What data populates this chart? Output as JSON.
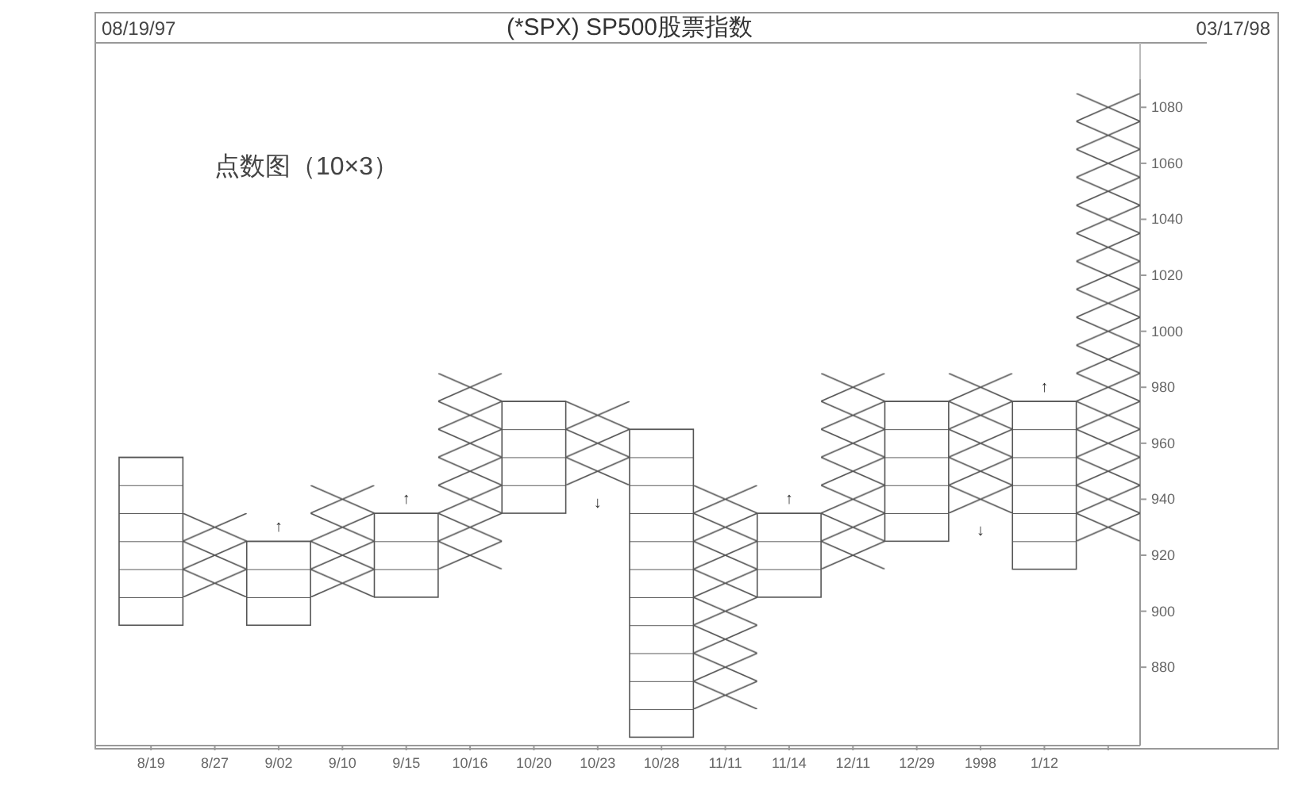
{
  "chart_data": {
    "type": "bar",
    "title": "(*SPX) SP500股票指数",
    "categories": [
      "8/19",
      "8/27",
      "9/02",
      "9/10",
      "9/15",
      "10/16",
      "10/20",
      "10/23",
      "10/28",
      "11/11",
      "11/14",
      "12/11",
      "12/29",
      "1998",
      "1/12",
      null
    ],
    "series": [
      {
        "color": "#555555",
        "marker": "square",
        "base": [
          895,
          null,
          895,
          null,
          905,
          null,
          935,
          null,
          855,
          null,
          905,
          null,
          925,
          null,
          915,
          null
        ],
        "values": [
          60,
          null,
          30,
          null,
          30,
          null,
          40,
          null,
          110,
          null,
          30,
          null,
          50,
          null,
          60,
          null
        ]
      },
      {
        "color": "#555555",
        "marker": "cross",
        "base": [
          null,
          905,
          null,
          905,
          null,
          915,
          null,
          945,
          null,
          865,
          null,
          915,
          null,
          935,
          null,
          925
        ],
        "values": [
          null,
          30,
          null,
          40,
          null,
          70,
          null,
          30,
          null,
          80,
          null,
          70,
          null,
          50,
          null,
          160
        ]
      }
    ],
    "ylim": [
      852,
      1090
    ],
    "yticks": [
      880,
      900,
      920,
      940,
      960,
      980,
      1000,
      1020,
      1040,
      1060,
      1080
    ],
    "grid": false,
    "annotations": [
      "08/19/97",
      "03/17/98",
      "点数图（10×3）",
      {
        "text": "↑",
        "x": "9/02",
        "y": 925
      },
      {
        "text": "↑",
        "x": "9/15",
        "y": 935
      },
      {
        "text": "↓",
        "x": "10/23",
        "y": 945
      },
      {
        "text": "↑",
        "x": "11/14",
        "y": 935
      },
      {
        "text": "↓",
        "x": "1998",
        "y": 935
      },
      {
        "text": "↑",
        "x": "1/12",
        "y": 975
      }
    ]
  }
}
